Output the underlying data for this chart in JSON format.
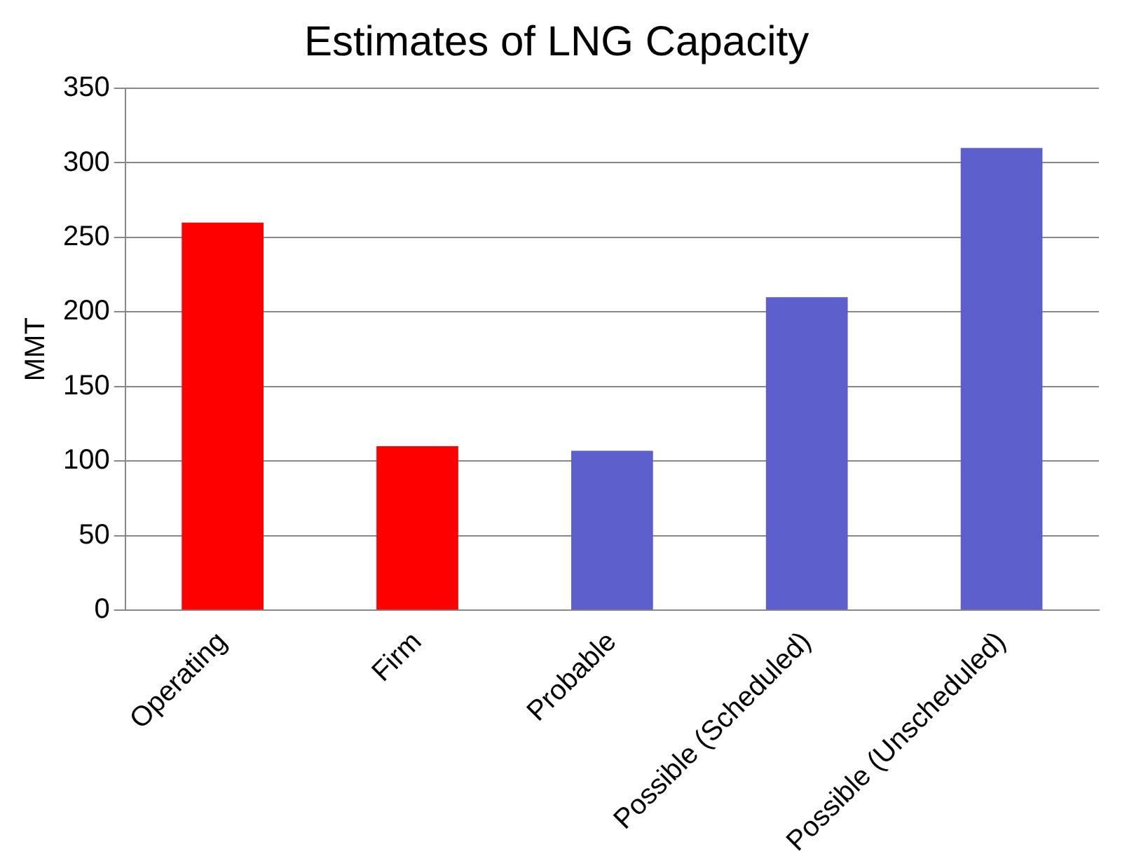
{
  "chart_data": {
    "type": "bar",
    "title": "Estimates of LNG Capacity",
    "ylabel": "MMT",
    "categories": [
      "Operating",
      "Firm",
      "Probable",
      "Possible (Scheduled)",
      "Possible (Unscheduled)"
    ],
    "values": [
      260,
      110,
      107,
      210,
      310
    ],
    "colors": [
      "#ff0000",
      "#ff0000",
      "#5d5fcc",
      "#5d5fcc",
      "#5d5fcc"
    ],
    "ylim": [
      0,
      350
    ],
    "yticks": [
      0,
      50,
      100,
      150,
      200,
      250,
      300,
      350
    ],
    "grid": "y",
    "legend": false
  }
}
